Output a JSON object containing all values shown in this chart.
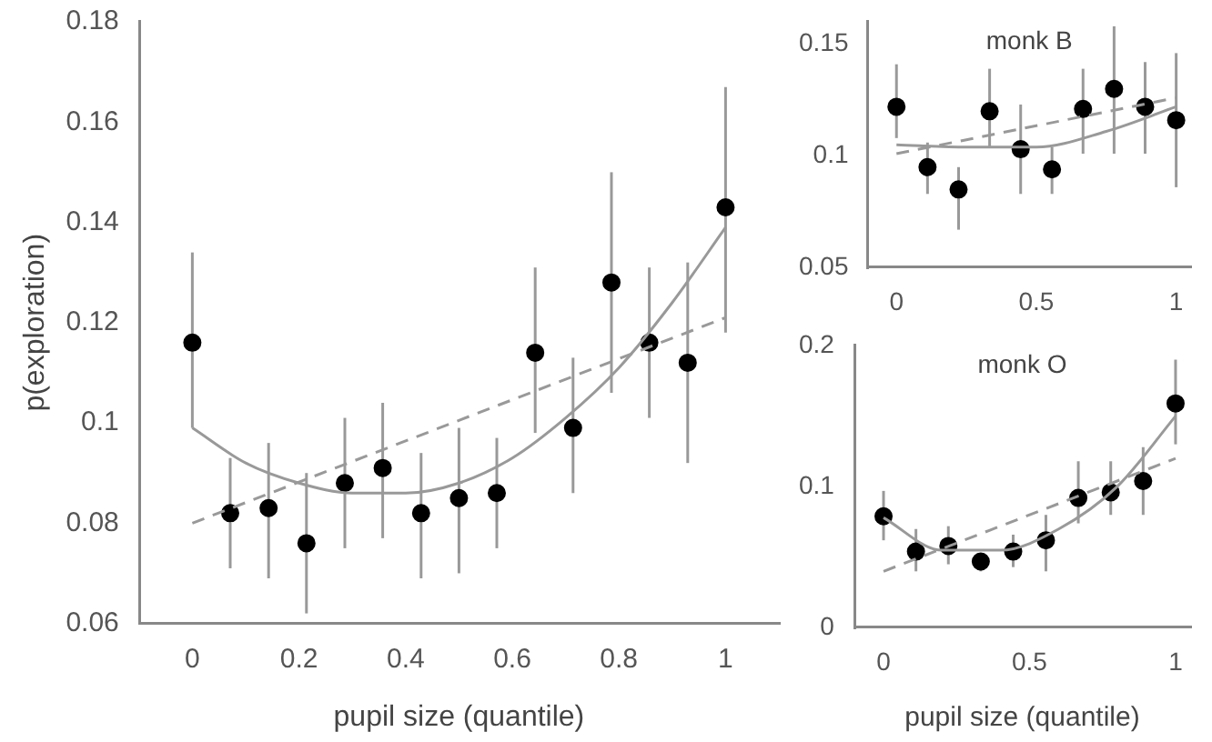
{
  "chart_data": [
    {
      "type": "scatter",
      "xlabel": "pupil size (quantile)",
      "ylabel": "p(exploration)",
      "xlim": [
        -0.1,
        1.1
      ],
      "xticks": [
        0,
        0.2,
        0.4,
        0.6,
        0.8,
        1
      ],
      "ylim": [
        0.06,
        0.18
      ],
      "yticks": [
        0.06,
        0.08,
        0.1,
        0.12,
        0.14,
        0.16,
        0.18
      ],
      "grid": false,
      "legend": false,
      "series": [
        {
          "marker": "circle",
          "color": "#000000",
          "x": [
            0,
            0.071,
            0.143,
            0.214,
            0.286,
            0.357,
            0.429,
            0.5,
            0.571,
            0.643,
            0.714,
            0.786,
            0.857,
            0.929,
            1
          ],
          "values": [
            0.116,
            0.082,
            0.083,
            0.076,
            0.088,
            0.091,
            0.082,
            0.085,
            0.086,
            0.114,
            0.099,
            0.128,
            0.116,
            0.112,
            0.143
          ],
          "errors": [
            [
              0.099,
              0.134
            ],
            [
              0.071,
              0.093
            ],
            [
              0.069,
              0.096
            ],
            [
              0.062,
              0.09
            ],
            [
              0.075,
              0.101
            ],
            [
              0.077,
              0.104
            ],
            [
              0.069,
              0.094
            ],
            [
              0.07,
              0.099
            ],
            [
              0.075,
              0.097
            ],
            [
              0.098,
              0.131
            ],
            [
              0.086,
              0.113
            ],
            [
              0.106,
              0.15
            ],
            [
              0.101,
              0.131
            ],
            [
              0.092,
              0.132
            ],
            [
              0.118,
              0.167
            ]
          ]
        },
        {
          "type": "line",
          "marker": "none",
          "line_style": "solid",
          "color": "#999999",
          "x": [
            0,
            0.1,
            0.2,
            0.3,
            0.4,
            0.5,
            0.6,
            0.7,
            0.8,
            0.9,
            1
          ],
          "values": [
            0.099,
            0.092,
            0.088,
            0.086,
            0.086,
            0.088,
            0.093,
            0.101,
            0.111,
            0.124,
            0.139
          ]
        },
        {
          "type": "line",
          "marker": "none",
          "line_style": "dashed",
          "color": "#999999",
          "x": [
            0,
            1
          ],
          "values": [
            0.08,
            0.121
          ]
        }
      ]
    },
    {
      "type": "scatter",
      "title": "monk B",
      "xlim": [
        -0.1,
        1.05
      ],
      "xticks": [
        0,
        0.5,
        1
      ],
      "ylim": [
        0.05,
        0.16
      ],
      "yticks": [
        0.05,
        0.1,
        0.15
      ],
      "grid": false,
      "legend": false,
      "series": [
        {
          "marker": "circle",
          "color": "#000000",
          "x": [
            0,
            0.111,
            0.222,
            0.333,
            0.444,
            0.556,
            0.667,
            0.778,
            0.889,
            1
          ],
          "values": [
            0.122,
            0.095,
            0.085,
            0.12,
            0.103,
            0.094,
            0.121,
            0.13,
            0.122,
            0.116
          ],
          "errors": [
            [
              0.108,
              0.141
            ],
            [
              0.083,
              0.106
            ],
            [
              0.067,
              0.095
            ],
            [
              0.104,
              0.139
            ],
            [
              0.083,
              0.123
            ],
            [
              0.083,
              0.104
            ],
            [
              0.101,
              0.139
            ],
            [
              0.101,
              0.158
            ],
            [
              0.101,
              0.142
            ],
            [
              0.086,
              0.146
            ]
          ]
        },
        {
          "type": "line",
          "marker": "none",
          "line_style": "solid",
          "color": "#999999",
          "x": [
            0,
            0.25,
            0.5,
            0.75,
            1
          ],
          "values": [
            0.105,
            0.104,
            0.104,
            0.111,
            0.122
          ]
        },
        {
          "type": "line",
          "marker": "none",
          "line_style": "dashed",
          "color": "#999999",
          "x": [
            0,
            1
          ],
          "values": [
            0.101,
            0.126
          ]
        }
      ]
    },
    {
      "type": "scatter",
      "title": "monk O",
      "xlabel": "pupil size (quantile)",
      "xlim": [
        -0.1,
        1.05
      ],
      "xticks": [
        0,
        0.5,
        1
      ],
      "ylim": [
        0,
        0.2
      ],
      "yticks": [
        0,
        0.1,
        0.2
      ],
      "grid": false,
      "legend": false,
      "series": [
        {
          "marker": "circle",
          "color": "#000000",
          "x": [
            0,
            0.111,
            0.222,
            0.333,
            0.444,
            0.556,
            0.667,
            0.778,
            0.889,
            1
          ],
          "values": [
            0.079,
            0.054,
            0.058,
            0.047,
            0.054,
            0.062,
            0.092,
            0.096,
            0.104,
            0.159
          ],
          "errors": [
            [
              0.062,
              0.097
            ],
            [
              0.04,
              0.07
            ],
            [
              0.045,
              0.072
            ],
            [
              0.04,
              0.053
            ],
            [
              0.043,
              0.066
            ],
            [
              0.04,
              0.08
            ],
            [
              0.074,
              0.118
            ],
            [
              0.08,
              0.118
            ],
            [
              0.08,
              0.128
            ],
            [
              0.13,
              0.19
            ]
          ]
        },
        {
          "type": "line",
          "marker": "none",
          "line_style": "solid",
          "color": "#999999",
          "x": [
            0,
            0.2,
            0.4,
            0.6,
            0.8,
            1
          ],
          "values": [
            0.078,
            0.055,
            0.055,
            0.07,
            0.1,
            0.15
          ]
        },
        {
          "type": "line",
          "marker": "none",
          "line_style": "dashed",
          "color": "#999999",
          "x": [
            0,
            1
          ],
          "values": [
            0.04,
            0.12
          ]
        }
      ]
    }
  ]
}
